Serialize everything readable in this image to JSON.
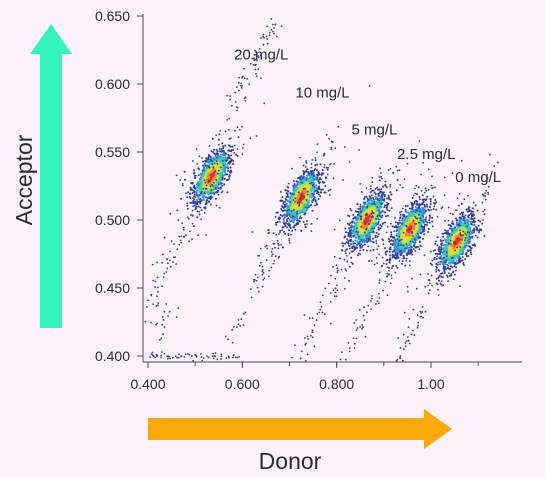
{
  "chart_data": {
    "type": "scatter",
    "title": "",
    "xlabel": "Donor",
    "ylabel": "Acceptor",
    "xlim": [
      0.38,
      1.2
    ],
    "ylim": [
      0.4,
      0.65
    ],
    "x_ticks": [
      {
        "value": 0.4,
        "label": "0.400"
      },
      {
        "value": 0.6,
        "label": "0.600"
      },
      {
        "value": 0.8,
        "label": "0.800"
      },
      {
        "value": 1.0,
        "label": "1.00"
      }
    ],
    "y_ticks": [
      {
        "value": 0.4,
        "label": "0.400"
      },
      {
        "value": 0.45,
        "label": "0.450"
      },
      {
        "value": 0.5,
        "label": "0.500"
      },
      {
        "value": 0.55,
        "label": "0.550"
      },
      {
        "value": 0.6,
        "label": "0.600"
      },
      {
        "value": 0.65,
        "label": "0.650"
      }
    ],
    "grid": false,
    "colormap": [
      "#2b3f9e",
      "#2e8fd6",
      "#3fc7b5",
      "#b8e04a",
      "#f5d63a",
      "#f08a2a",
      "#e0302a"
    ],
    "clusters": [
      {
        "label": "20 mg/L",
        "center": [
          0.535,
          0.532
        ],
        "label_at": [
          0.64,
          0.618
        ]
      },
      {
        "label": "10 mg/L",
        "center": [
          0.725,
          0.517
        ],
        "label_at": [
          0.77,
          0.59
        ]
      },
      {
        "label": "5 mg/L",
        "center": [
          0.865,
          0.5
        ],
        "label_at": [
          0.88,
          0.563
        ]
      },
      {
        "label": "2.5 mg/L",
        "center": [
          0.955,
          0.493
        ],
        "label_at": [
          0.99,
          0.545
        ]
      },
      {
        "label": "0 mg/L",
        "center": [
          1.055,
          0.484
        ],
        "label_at": [
          1.1,
          0.528
        ]
      }
    ]
  },
  "arrows": {
    "y_color": "#34f5b9",
    "x_color": "#f9aa0a"
  }
}
